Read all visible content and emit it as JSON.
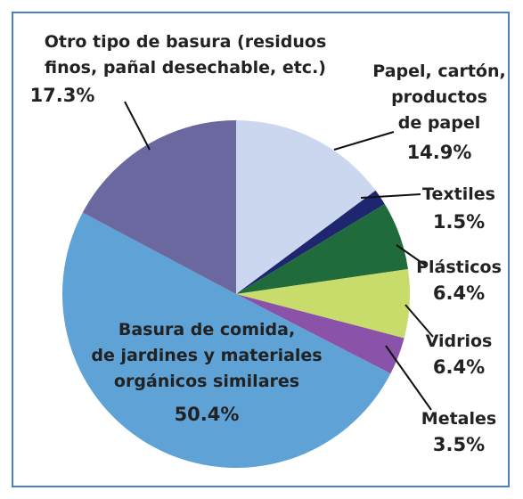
{
  "chart_data": {
    "type": "pie",
    "categories": [
      "Papel, cartón,\nproductos\nde papel",
      "Textiles",
      "Plásticos",
      "Vidrios",
      "Metales",
      "Basura de comida,\nde jardines y materiales\norgánicos similares",
      "Otro tipo de basura (residuos\nfinos, pañal desechable, etc.)"
    ],
    "values": [
      14.9,
      1.5,
      6.4,
      6.4,
      3.5,
      50.4,
      17.3
    ],
    "value_labels": [
      "14.9%",
      "1.5%",
      "6.4%",
      "6.4%",
      "3.5%",
      "50.4%",
      "17.3%"
    ],
    "colors": [
      "#cbd6ef",
      "#1f2670",
      "#1f6b3b",
      "#c8dc6c",
      "#8a52a8",
      "#5ea2d6",
      "#6b689f"
    ]
  }
}
